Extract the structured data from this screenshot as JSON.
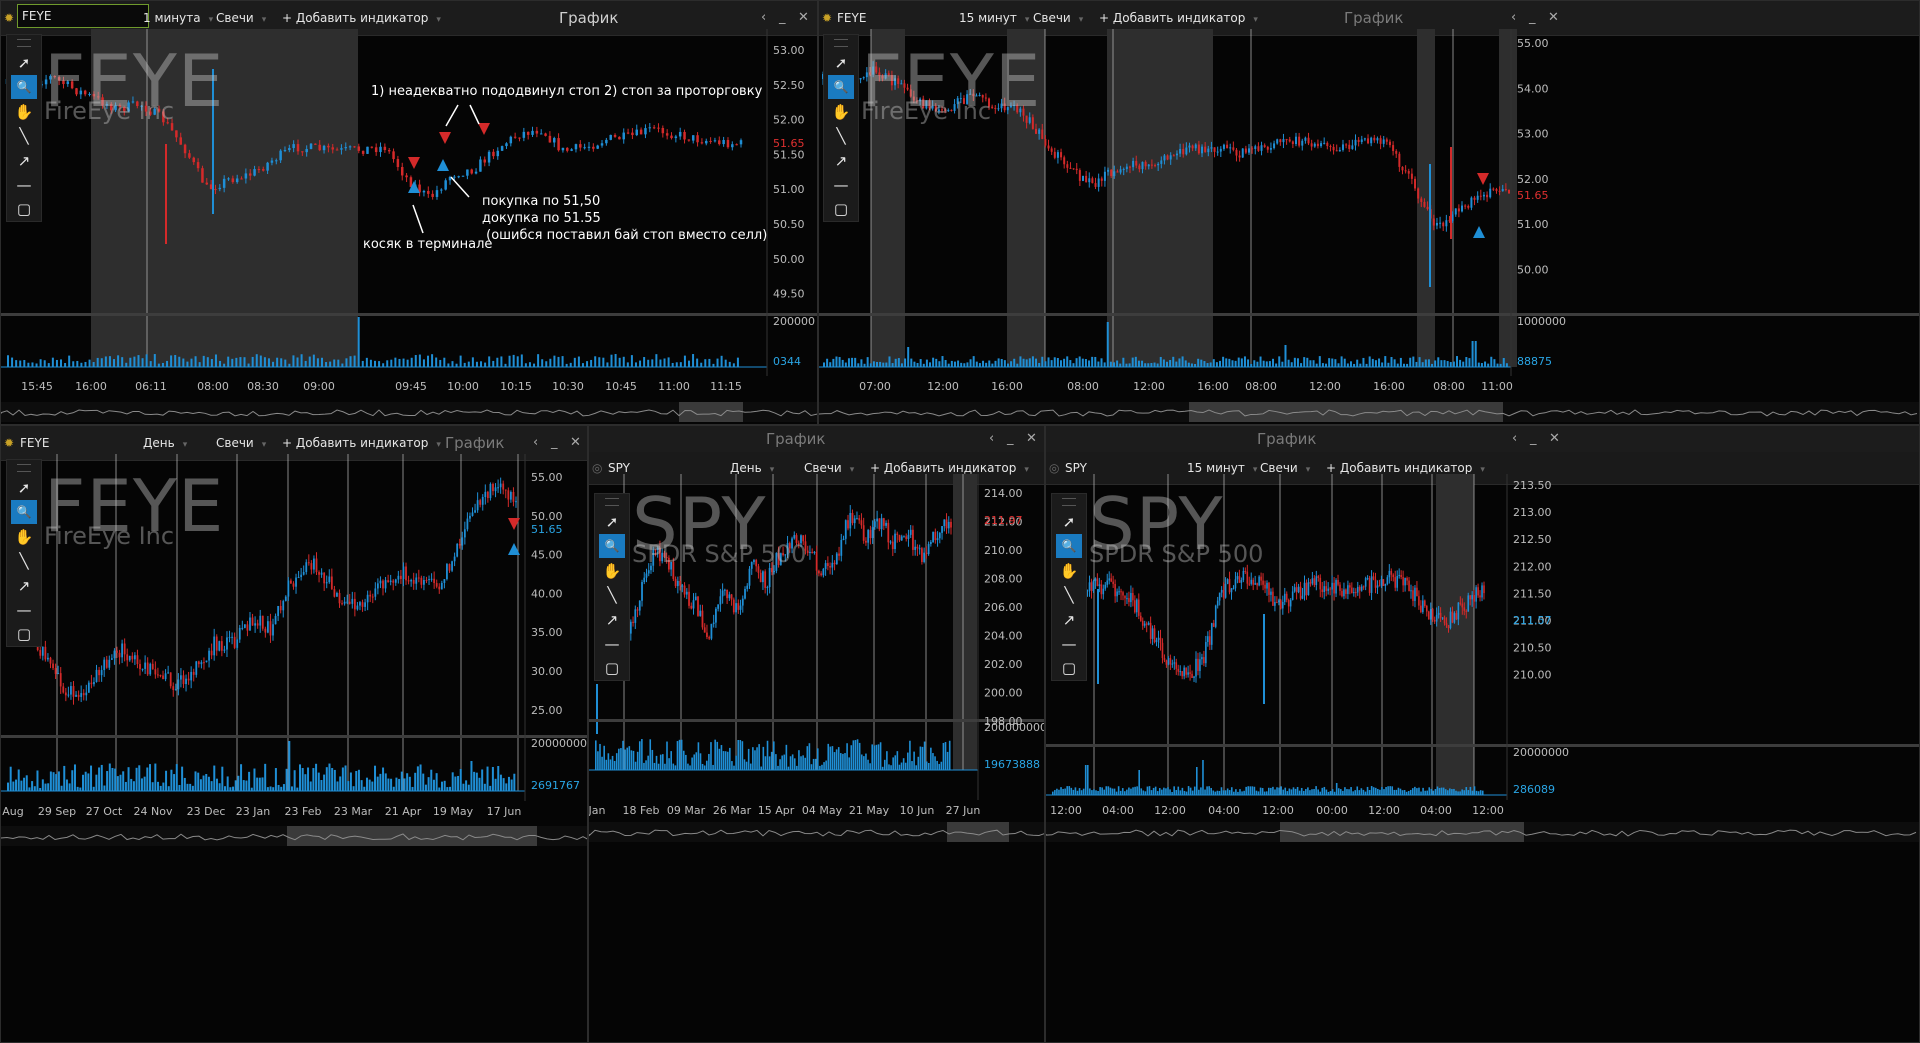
{
  "colors": {
    "up": "#1f8fd6",
    "down": "#d42a2a",
    "volume": "#1f8fd6",
    "price_up_label": "#2aa6e6",
    "price_down_label": "#e03030",
    "accent": "#1a7bc1",
    "nav_fill": "#3a3a3a"
  },
  "icons": [
    "settings-icon",
    "chevron-left-icon",
    "minimize-icon",
    "close-icon",
    "cursor-icon",
    "zoom-icon",
    "hand-icon",
    "line-icon",
    "arrow-icon",
    "hline-icon",
    "rect-icon",
    "dropdown-icon"
  ],
  "tools": [
    {
      "name": "cursor-tool",
      "icon": "cursor-icon",
      "glyph": "➚"
    },
    {
      "name": "zoom-tool",
      "icon": "zoom-icon",
      "glyph": "🔍"
    },
    {
      "name": "hand-tool",
      "icon": "hand-icon",
      "glyph": "✋"
    },
    {
      "name": "line-tool",
      "icon": "line-icon",
      "glyph": "╲"
    },
    {
      "name": "arrow-tool",
      "icon": "arrow-icon",
      "glyph": "↗"
    },
    {
      "name": "hline-tool",
      "icon": "hline-icon",
      "glyph": "—"
    },
    {
      "name": "rect-tool",
      "icon": "rect-icon",
      "glyph": "▢"
    }
  ],
  "common": {
    "chart_title": "График",
    "add_indicator": "+ Добавить индикатор",
    "style": "Свечи"
  },
  "panels": [
    {
      "id": "p1",
      "symbol": "FEYE",
      "interval": "1 минута",
      "wm_symbol": "FEYE",
      "wm_name": "FireEye Inc",
      "y_ticks": [
        "53.00",
        "52.50",
        "52.00",
        "51.50",
        "51.00",
        "50.50",
        "50.00",
        "49.50"
      ],
      "current_price": "51.65",
      "vol_max": "200000",
      "vol_last": "0344",
      "x_ticks": [
        "15:45",
        "16:00",
        "06:11",
        "08:00",
        "08:30",
        "09:00",
        "09:45",
        "10:00",
        "10:15",
        "10:30",
        "10:45",
        "11:00",
        "11:15"
      ],
      "annotations": [
        "1) неадекватно пододвинул стоп 2) стоп за проторговку",
        "покупка по 51,50\nдокупка по 51.55\n (ошибся поставил бай стоп вместо селл)",
        "косяк в терминале"
      ]
    },
    {
      "id": "p2",
      "symbol": "FEYE",
      "interval": "15 минут",
      "wm_symbol": "FEYE",
      "wm_name": "FireEye Inc",
      "y_ticks": [
        "55.00",
        "54.00",
        "53.00",
        "52.00",
        "51.00",
        "50.00"
      ],
      "current_price": "51.65",
      "vol_max": "1000000",
      "vol_last": "88875",
      "x_ticks": [
        "07:00",
        "12:00",
        "16:00",
        "08:00",
        "12:00",
        "16:00",
        "08:00",
        "12:00",
        "16:00",
        "08:00",
        "11:00"
      ]
    },
    {
      "id": "p3",
      "symbol": "FEYE",
      "interval": "День",
      "wm_symbol": "FEYE",
      "wm_name": "FireEye Inc",
      "y_ticks": [
        "55.00",
        "50.00",
        "45.00",
        "40.00",
        "35.00",
        "30.00",
        "25.00"
      ],
      "current_price": "51.65",
      "vol_max": "20000000",
      "vol_last": "2691767",
      "x_ticks": [
        "Aug",
        "29 Sep",
        "27 Oct",
        "24 Nov",
        "23 Dec",
        "23 Jan",
        "23 Feb",
        "23 Mar",
        "21 Apr",
        "19 May",
        "17 Jun"
      ]
    },
    {
      "id": "p4",
      "symbol": "SPY",
      "interval": "День",
      "wm_symbol": "SPY",
      "wm_name": "SPDR S&P 500",
      "y_ticks": [
        "214.00",
        "212.00",
        "210.00",
        "208.00",
        "206.00",
        "204.00",
        "202.00",
        "200.00",
        "198.00"
      ],
      "current_price": "211.97",
      "vol_max": "200000000",
      "vol_last": "19673888",
      "x_ticks": [
        "Jan",
        "18 Feb",
        "09 Mar",
        "26 Mar",
        "15 Apr",
        "04 May",
        "21 May",
        "10 Jun",
        "27 Jun"
      ]
    },
    {
      "id": "p5",
      "symbol": "SPY",
      "interval": "15 минут",
      "wm_symbol": "SPY",
      "wm_name": "SPDR S&P 500",
      "y_ticks": [
        "213.50",
        "213.00",
        "212.50",
        "212.00",
        "211.50",
        "211.00",
        "210.50",
        "210.00"
      ],
      "current_price": "211.57",
      "vol_max": "20000000",
      "vol_last": "286089",
      "x_ticks": [
        "12:00",
        "04:00",
        "12:00",
        "04:00",
        "12:00",
        "00:00",
        "12:00",
        "04:00",
        "12:00"
      ]
    }
  ]
}
